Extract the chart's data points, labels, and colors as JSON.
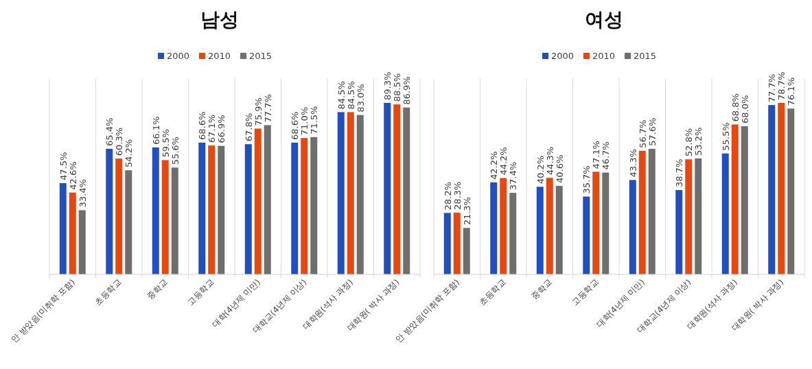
{
  "chart_data": [
    {
      "type": "bar",
      "title": "남성",
      "categories": [
        "안 받았음(미취학 포함)",
        "초등학교",
        "중학교",
        "고등학교",
        "대학(4년제 미만)",
        "대학교(4년제 이상)",
        "대학원(석사 과정)",
        "대학원( 박사 과정)"
      ],
      "legend": "top",
      "series": [
        {
          "name": "2000",
          "color": "#1f4fc1",
          "values": [
            47.5,
            65.4,
            66.1,
            68.6,
            67.8,
            68.6,
            84.5,
            89.3
          ],
          "value_labels": [
            "47.5%",
            "65.4%",
            "66.1%",
            "68.6%",
            "67.8%",
            "68.6%",
            "84.5%",
            "89.3%"
          ]
        },
        {
          "name": "2010",
          "color": "#e8470f",
          "values": [
            42.6,
            60.3,
            59.5,
            67.1,
            75.9,
            71.0,
            84.5,
            88.5
          ],
          "value_labels": [
            "42.6%",
            "60.3%",
            "59.5%",
            "67.1%",
            "75.9%",
            "71.0%",
            "84.5%",
            "88.5%"
          ]
        },
        {
          "name": "2015",
          "color": "#6e6e6e",
          "values": [
            33.4,
            54.2,
            55.6,
            66.9,
            77.7,
            71.5,
            83.0,
            86.9
          ],
          "value_labels": [
            "33.4%",
            "54.2%",
            "55.6%",
            "66.9%",
            "77.7%",
            "71.5%",
            "83.0%",
            "86.9%"
          ]
        }
      ]
    },
    {
      "type": "bar",
      "title": "여성",
      "categories": [
        "안 받았음(미취학 포함)",
        "초등학교",
        "중학교",
        "고등학교",
        "대학(4년제 미만)",
        "대학교(4년제 이상)",
        "대학원(석사 과정)",
        "대학원( 박사 과정)"
      ],
      "legend": "top",
      "series": [
        {
          "name": "2000",
          "color": "#1f4fc1",
          "values": [
            28.2,
            42.2,
            40.2,
            35.7,
            43.3,
            38.7,
            55.5,
            77.7
          ],
          "value_labels": [
            "28.2%",
            "42.2%",
            "40.2%",
            "35.7%",
            "43.3%",
            "38.7%",
            "55.5%",
            "77.7%"
          ]
        },
        {
          "name": "2010",
          "color": "#e8470f",
          "values": [
            28.3,
            44.2,
            44.3,
            47.1,
            56.7,
            52.8,
            68.8,
            78.7
          ],
          "value_labels": [
            "28.3%",
            "44.2%",
            "44.3%",
            "47.1%",
            "56.7%",
            "52.8%",
            "68.8%",
            "78.7%"
          ]
        },
        {
          "name": "2015",
          "color": "#6e6e6e",
          "values": [
            21.3,
            37.4,
            40.6,
            46.7,
            57.6,
            53.2,
            68.0,
            76.1
          ],
          "value_labels": [
            "21.3%",
            "37.4%",
            "40.6%",
            "46.7%",
            "57.6%",
            "53.2%",
            "68.0%",
            "76.1%"
          ]
        }
      ]
    }
  ]
}
